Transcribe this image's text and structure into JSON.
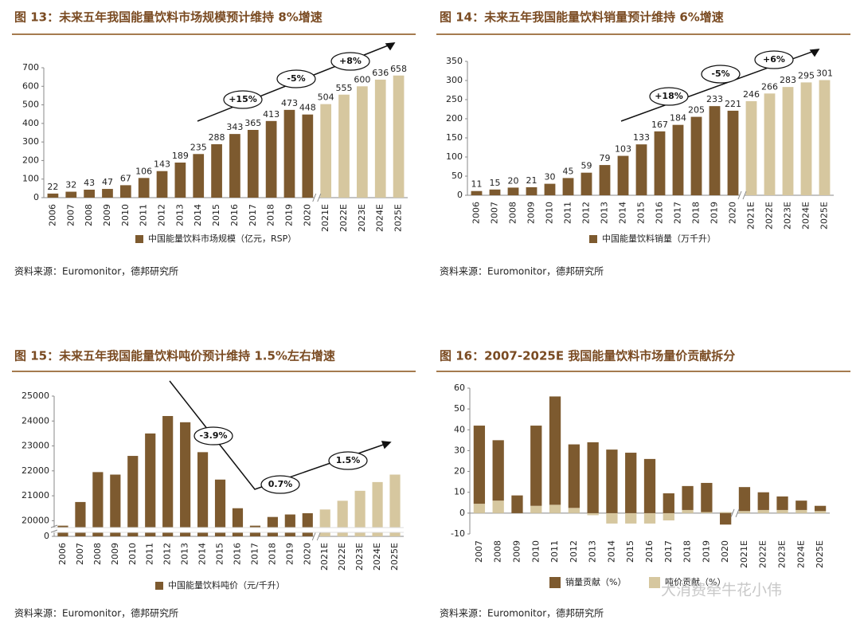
{
  "watermark": "大消费牵牛花小伟",
  "chart_data": [
    {
      "type": "bar",
      "title": "图 13：未来五年我国能量饮料市场规模预计维持 8%增速",
      "source": "资料来源：Euromonitor，德邦研究所",
      "categories": [
        "2006",
        "2007",
        "2008",
        "2009",
        "2010",
        "2011",
        "2012",
        "2013",
        "2014",
        "2015",
        "2016",
        "2017",
        "2018",
        "2019",
        "2020",
        "2021E",
        "2022E",
        "2023E",
        "2024E",
        "2025E"
      ],
      "values": [
        22,
        32,
        43,
        47,
        67,
        106,
        143,
        189,
        235,
        288,
        343,
        365,
        413,
        473,
        448,
        504,
        555,
        600,
        636,
        658
      ],
      "colors": [
        "#7d5a2f",
        "#7d5a2f",
        "#7d5a2f",
        "#7d5a2f",
        "#7d5a2f",
        "#7d5a2f",
        "#7d5a2f",
        "#7d5a2f",
        "#7d5a2f",
        "#7d5a2f",
        "#7d5a2f",
        "#7d5a2f",
        "#7d5a2f",
        "#7d5a2f",
        "#7d5a2f",
        "#d6c79f",
        "#d6c79f",
        "#d6c79f",
        "#d6c79f",
        "#d6c79f"
      ],
      "legend": "中国能量饮料市场规模（亿元，RSP）",
      "legend_color": "#7d5a2f",
      "show_values": true,
      "annotations": [
        "+15%",
        "-5%",
        "+8%"
      ],
      "ylim": [
        0,
        700
      ],
      "yticks": [
        0,
        100,
        200,
        300,
        400,
        500,
        600,
        700
      ]
    },
    {
      "type": "bar",
      "title": "图 14：未来五年我国能量饮料销量预计维持 6%增速",
      "source": "资料来源：Euromonitor，德邦研究所",
      "categories": [
        "2006",
        "2007",
        "2008",
        "2009",
        "2010",
        "2011",
        "2012",
        "2013",
        "2014",
        "2015",
        "2016",
        "2017",
        "2018",
        "2019",
        "2020",
        "2021E",
        "2022E",
        "2023E",
        "2024E",
        "2025E"
      ],
      "values": [
        11,
        15,
        20,
        21,
        30,
        45,
        59,
        79,
        103,
        133,
        167,
        184,
        205,
        233,
        221,
        246,
        266,
        283,
        295,
        301
      ],
      "colors": [
        "#7d5a2f",
        "#7d5a2f",
        "#7d5a2f",
        "#7d5a2f",
        "#7d5a2f",
        "#7d5a2f",
        "#7d5a2f",
        "#7d5a2f",
        "#7d5a2f",
        "#7d5a2f",
        "#7d5a2f",
        "#7d5a2f",
        "#7d5a2f",
        "#7d5a2f",
        "#7d5a2f",
        "#d6c79f",
        "#d6c79f",
        "#d6c79f",
        "#d6c79f",
        "#d6c79f"
      ],
      "legend": "中国能量饮料销量（万千升）",
      "legend_color": "#7d5a2f",
      "show_values": true,
      "annotations": [
        "+18%",
        "-5%",
        "+6%"
      ],
      "ylim": [
        0,
        350
      ],
      "yticks": [
        0,
        50,
        100,
        150,
        200,
        250,
        300,
        350
      ]
    },
    {
      "type": "bar",
      "title": "图 15：未来五年我国能量饮料吨价预计维持 1.5%左右增速",
      "source": "资料来源：Euromonitor，德邦研究所",
      "categories": [
        "2006",
        "2007",
        "2008",
        "2009",
        "2010",
        "2011",
        "2012",
        "2013",
        "2014",
        "2015",
        "2016",
        "2017",
        "2018",
        "2019",
        "2020",
        "2021E",
        "2022E",
        "2023E",
        "2024E",
        "2025E"
      ],
      "values": [
        19800,
        20750,
        21950,
        21850,
        22600,
        23500,
        24200,
        23950,
        22750,
        21650,
        20500,
        19800,
        20150,
        20250,
        20300,
        20450,
        20800,
        21200,
        21550,
        21850
      ],
      "colors": [
        "#7d5a2f",
        "#7d5a2f",
        "#7d5a2f",
        "#7d5a2f",
        "#7d5a2f",
        "#7d5a2f",
        "#7d5a2f",
        "#7d5a2f",
        "#7d5a2f",
        "#7d5a2f",
        "#7d5a2f",
        "#7d5a2f",
        "#7d5a2f",
        "#7d5a2f",
        "#7d5a2f",
        "#d6c79f",
        "#d6c79f",
        "#d6c79f",
        "#d6c79f",
        "#d6c79f"
      ],
      "legend": "中国能量饮料吨价（元/千升）",
      "legend_color": "#7d5a2f",
      "show_values": false,
      "annotations": [
        "-3.9%",
        "0.7%",
        "1.5%"
      ],
      "ylim": [
        0,
        25000
      ],
      "ybreak": [
        0,
        19500
      ],
      "yticks": [
        0,
        20000,
        21000,
        22000,
        23000,
        24000,
        25000
      ]
    },
    {
      "type": "stacked_bar",
      "title": "图 16：2007-2025E 我国能量饮料市场量价贡献拆分",
      "source": "资料来源：Euromonitor，德邦研究所",
      "categories": [
        "2007",
        "2008",
        "2009",
        "2010",
        "2011",
        "2012",
        "2013",
        "2014",
        "2015",
        "2016",
        "2017",
        "2018",
        "2019",
        "2020",
        "2021E",
        "2022E",
        "2023E",
        "2024E",
        "2025E"
      ],
      "series": [
        {
          "name": "吨价贡献（%）",
          "color": "#d6c79f",
          "values": [
            4.5,
            6,
            0,
            3.5,
            4,
            2.5,
            -1,
            -5,
            -5,
            -5,
            -3.5,
            1.5,
            0.5,
            0.5,
            1,
            1.5,
            1.5,
            1.5,
            1
          ]
        },
        {
          "name": "销量贡献（%）",
          "color": "#7d5a2f",
          "values": [
            37.5,
            29,
            8.5,
            38.5,
            52,
            30.5,
            34,
            30.5,
            29,
            26,
            9.5,
            11.5,
            14,
            -5.5,
            11.5,
            8.5,
            6.5,
            4.5,
            2.5
          ]
        }
      ],
      "ylim": [
        -10,
        60
      ],
      "yticks": [
        -10,
        0,
        10,
        20,
        30,
        40,
        50,
        60
      ]
    }
  ]
}
